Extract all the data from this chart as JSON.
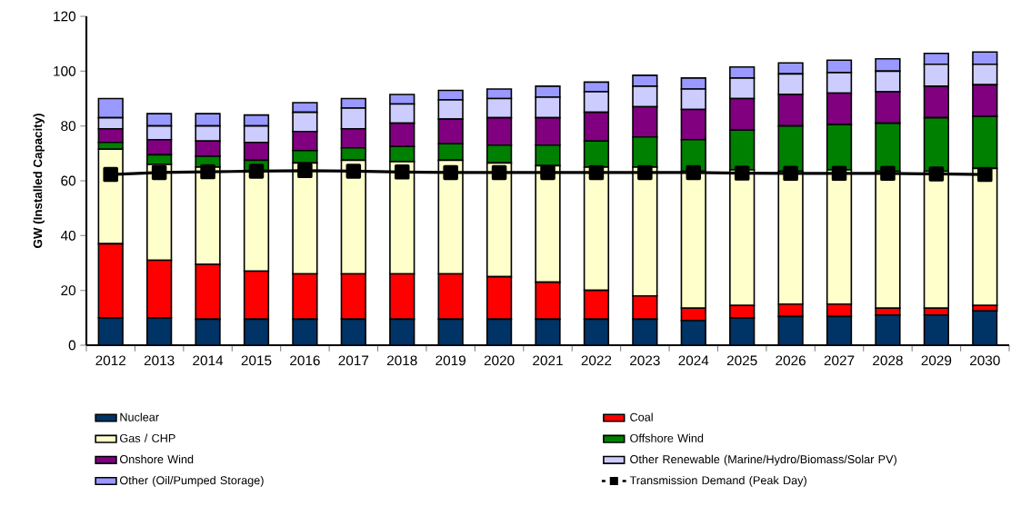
{
  "chart_data": {
    "type": "bar",
    "stacked": true,
    "ylabel": "GW (Installed Capacity)",
    "categories": [
      "2012",
      "2013",
      "2014",
      "2015",
      "2016",
      "2017",
      "2018",
      "2019",
      "2020",
      "2021",
      "2022",
      "2023",
      "2024",
      "2025",
      "2026",
      "2027",
      "2028",
      "2029",
      "2030"
    ],
    "ylim": [
      0,
      120
    ],
    "yticks": [
      0,
      20,
      40,
      60,
      80,
      100,
      120
    ],
    "legend": "bottom",
    "series": [
      {
        "name": "Nuclear",
        "color": "#003366",
        "values": [
          10,
          10,
          9.5,
          9.5,
          9.5,
          9.5,
          9.5,
          9.5,
          9.5,
          9.5,
          9.5,
          9.5,
          9,
          10,
          10.5,
          10.5,
          11,
          11,
          12.5
        ]
      },
      {
        "name": "Coal",
        "color": "#ff0000",
        "values": [
          27,
          21,
          20,
          17.5,
          16.5,
          16.5,
          16.5,
          16.5,
          15.5,
          13.5,
          10.5,
          8.5,
          4.5,
          4.5,
          4.5,
          4.5,
          2.5,
          2.5,
          2
        ]
      },
      {
        "name": "Gas / CHP",
        "color": "#ffffcc",
        "values": [
          34.5,
          35,
          35.5,
          36.5,
          40.5,
          41.5,
          41,
          41.5,
          41.5,
          42.5,
          45,
          47,
          50,
          49.5,
          48.5,
          49,
          50,
          50,
          50
        ]
      },
      {
        "name": "Offshore Wind",
        "color": "#008000",
        "values": [
          2.5,
          3.5,
          4,
          4,
          4.5,
          4.5,
          5.5,
          6,
          6.5,
          7.5,
          9.5,
          11,
          11.5,
          14.5,
          16.5,
          16.5,
          17.5,
          19.5,
          19
        ]
      },
      {
        "name": "Onshore Wind",
        "color": "#800080",
        "values": [
          5,
          5.5,
          5.5,
          6.5,
          7,
          7,
          8.5,
          9,
          10,
          10,
          10.5,
          11,
          11,
          11.5,
          11.5,
          11.5,
          11.5,
          11.5,
          11.5
        ]
      },
      {
        "name": "Other Renewable (Marine/Hydro/Biomass/Solar PV)",
        "color": "#ccccff",
        "values": [
          4,
          5,
          5.5,
          6,
          7,
          7.5,
          7,
          7,
          7,
          7.5,
          7.5,
          7.5,
          7.5,
          7.5,
          7.5,
          7.5,
          7.5,
          8,
          7.5
        ]
      },
      {
        "name": "Other (Oil/Pumped Storage)",
        "color": "#9999ff",
        "values": [
          7,
          4.5,
          4.5,
          4,
          3.5,
          3.5,
          3.5,
          3.5,
          3.5,
          4,
          3.5,
          4,
          4,
          4,
          4,
          4.5,
          4.5,
          4,
          4.5
        ]
      },
      {
        "name": "Transmission Demand (Peak Day)",
        "type": "line",
        "marker": "square",
        "color": "#000000",
        "values": [
          62.3,
          63,
          63.3,
          63.5,
          63.7,
          63.5,
          63.2,
          63,
          63,
          63,
          63,
          63,
          63,
          62.8,
          62.7,
          62.7,
          62.7,
          62.5,
          62.3
        ]
      }
    ]
  }
}
